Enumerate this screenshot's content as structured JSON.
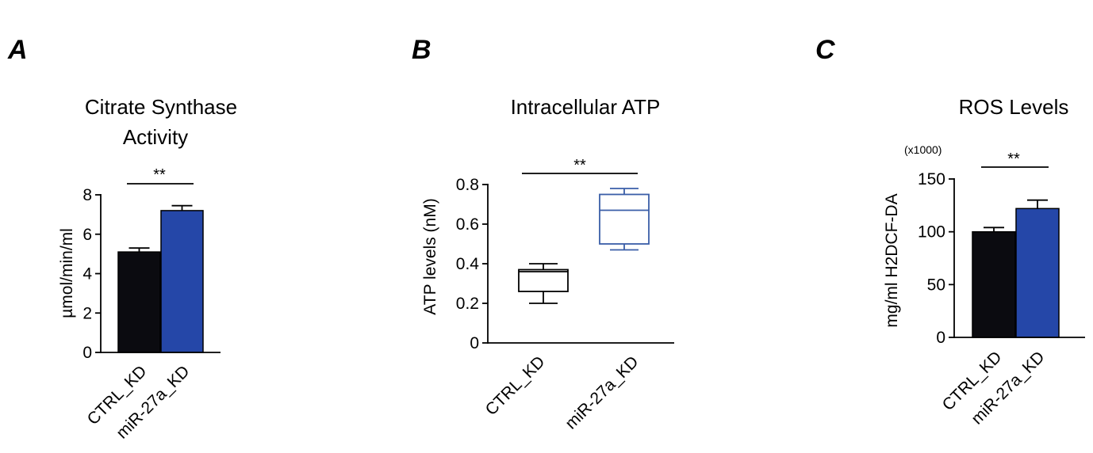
{
  "colors": {
    "black_bar": "#0b0b10",
    "blue_bar": "#2547a8",
    "blue_box": "#3a5ea8"
  },
  "chart_data": [
    {
      "panel": "A",
      "type": "bar",
      "title_lines": [
        "Citrate Synthase",
        "Activity"
      ],
      "ylabel": "µmol/min/ml",
      "ylim": [
        0,
        8
      ],
      "yticks": [
        "0",
        "2",
        "4",
        "6",
        "8"
      ],
      "categories": [
        "CTRL_KD",
        "miR-27a_KD"
      ],
      "values": [
        5.1,
        7.2
      ],
      "errors": [
        0.2,
        0.25
      ],
      "significance": "**"
    },
    {
      "panel": "B",
      "type": "box",
      "title_lines": [
        "Intracellular ATP"
      ],
      "ylabel": "ATP levels (nM)",
      "ylim": [
        0,
        0.8
      ],
      "yticks": [
        "0",
        "0.2",
        "0.4",
        "0.6",
        "0.8"
      ],
      "categories": [
        "CTRL_KD",
        "miR-27a_KD"
      ],
      "boxes": [
        {
          "min": 0.2,
          "q1": 0.26,
          "median": 0.36,
          "q3": 0.37,
          "max": 0.4
        },
        {
          "min": 0.47,
          "q1": 0.5,
          "median": 0.67,
          "q3": 0.75,
          "max": 0.78
        }
      ],
      "significance": "**"
    },
    {
      "panel": "C",
      "type": "bar",
      "title_lines": [
        "ROS Levels"
      ],
      "multiplier": "(x1000)",
      "ylabel": "mg/ml H2DCF-DA",
      "ylim": [
        0,
        150
      ],
      "yticks": [
        "0",
        "50",
        "100",
        "150"
      ],
      "categories": [
        "CTRL_KD",
        "miR-27a_KD"
      ],
      "values": [
        100,
        122
      ],
      "errors": [
        4,
        8
      ],
      "significance": "**"
    }
  ]
}
